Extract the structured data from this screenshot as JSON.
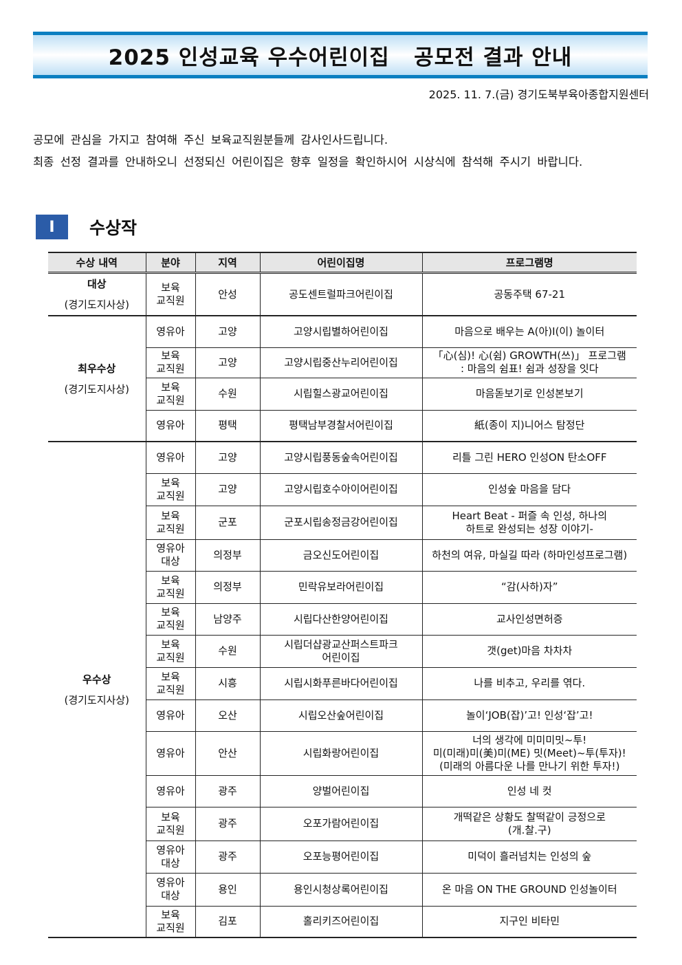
{
  "title": "2025 인성교육 우수어린이집   공모전 결과 안내",
  "date_org": "2025. 11. 7.(금) 경기도북부육아종합지원센터",
  "intro": [
    "공모에 관심을 가지고 참여해 주신 보육교직원분들께 감사인사드립니다.",
    "최종 선정 결과를 안내하오니 선정되신 어린이집은 향후 일정을 확인하시어 시상식에 참석해 주시기 바랍니다."
  ],
  "section": {
    "number": "Ⅰ",
    "title": "수상작"
  },
  "colors": {
    "accent": "#0b7fc1",
    "section_box": "#2b5ca8",
    "header_bg": "#e6e6e6"
  },
  "table": {
    "headers": [
      "수상 내역",
      "분야",
      "지역",
      "어린이집명",
      "프로그램명"
    ],
    "groups": [
      {
        "award": "대상",
        "sub": "(경기도지사상)",
        "rows": [
          [
            "보육\n교직원",
            "안성",
            "공도센트럴파크어린이집",
            "공동주택 67-21"
          ]
        ]
      },
      {
        "award": "최우수상",
        "sub": "(경기도지사상)",
        "rows": [
          [
            "영유아",
            "고양",
            "고양시립별하어린이집",
            "마음으로 배우는 A(아)I(이) 놀이터"
          ],
          [
            "보육\n교직원",
            "고양",
            "고양시립중산누리어린이집",
            "「心(심)! 心(쉼) GROWTH(쓰)」 프로그램\n: 마음의 쉼표! 쉼과 성장을 잇다"
          ],
          [
            "보육\n교직원",
            "수원",
            "시립힐스광교어린이집",
            "마음돋보기로 인성본보기"
          ],
          [
            "영유아",
            "평택",
            "평택남부경찰서어린이집",
            "紙(종이 지)니어스 탐정단"
          ]
        ]
      },
      {
        "award": "우수상",
        "sub": "(경기도지사상)",
        "rows": [
          [
            "영유아",
            "고양",
            "고양시립풍동숲속어린이집",
            "리틀 그린 HERO 인성ON 탄소OFF"
          ],
          [
            "보육\n교직원",
            "고양",
            "고양시립호수아이어린이집",
            "인성숲 마음을 담다"
          ],
          [
            "보육\n교직원",
            "군포",
            "군포시립송정금강어린이집",
            "Heart Beat - 퍼즐 속 인성, 하나의\n하트로 완성되는 성장 이야기-"
          ],
          [
            "영유아\n대상",
            "의정부",
            "금오신도어린이집",
            "하천의 여유, 마실길 따라 (하마인성프로그램)"
          ],
          [
            "보육\n교직원",
            "의정부",
            "민락유보라어린이집",
            "“감(사하)자”"
          ],
          [
            "보육\n교직원",
            "남양주",
            "시립다산한양어린이집",
            "교사인성면허증"
          ],
          [
            "보육\n교직원",
            "수원",
            "시립더샵광교산퍼스트파크\n어린이집",
            "갯(get)마음 차차차"
          ],
          [
            "보육\n교직원",
            "시흥",
            "시립시화푸른바다어린이집",
            "나를 비추고, 우리를 엮다."
          ],
          [
            "영유아",
            "오산",
            "시립오산숲어린이집",
            "놀이‘JOB(잡)’고! 인성‘잡’고!"
          ],
          [
            "영유아",
            "안산",
            "시립화랑어린이집",
            "너의 생각에 미미미밋~투!\n미(미래)미(美)미(ME) 밋(Meet)~투(투자)!\n(미래의 아름다운 나를 만나기 위한 투자!)"
          ],
          [
            "영유아",
            "광주",
            "양벌어린이집",
            "인성 네 컷"
          ],
          [
            "보육\n교직원",
            "광주",
            "오포가람어린이집",
            "개떡같은 상황도 찰떡같이 긍정으로\n(개.찰.구)"
          ],
          [
            "영유아\n대상",
            "광주",
            "오포능평어린이집",
            "미덕이 흘러넘치는 인성의 숲"
          ],
          [
            "영유아\n대상",
            "용인",
            "용인시청상록어린이집",
            "온 마음 ON THE GROUND 인성놀이터"
          ],
          [
            "보육\n교직원",
            "김포",
            "홀리키즈어린이집",
            "지구인 비타민"
          ]
        ]
      }
    ]
  }
}
